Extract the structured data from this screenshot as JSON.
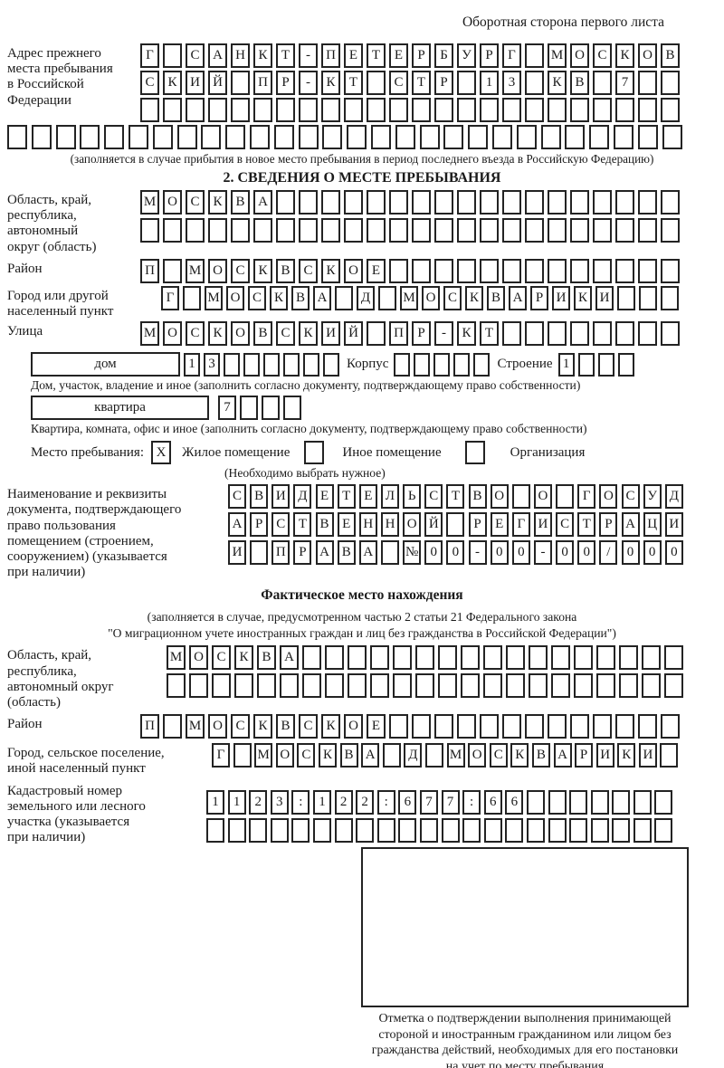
{
  "colors": {
    "ink": "#1b1b1b",
    "cell_border": "#232323",
    "background": "#ffffff"
  },
  "header": {
    "note": "Оборотная сторона первого листа"
  },
  "prev_address": {
    "label": "Адрес прежнего\nместа пребывания\nв Российской\nФедерации",
    "row1": {
      "text": "Г САНКТ-ПЕТЕРБУРГ МОСКОВ",
      "boxes": 24
    },
    "row2": {
      "text": "СКИЙ ПР-КТ СТР 13 КВ 7",
      "boxes": 24
    },
    "row3": {
      "text": "",
      "boxes": 24
    },
    "row4": {
      "text": "",
      "boxes": 28
    },
    "footnote": "(заполняется в случае прибытия в новое место пребывания в период последнего въезда в Российскую Федерацию)"
  },
  "section2": {
    "title": "2. СВЕДЕНИЯ О МЕСТЕ ПРЕБЫВАНИЯ",
    "region": {
      "label": "Область, край,\nреспублика,\nавтономный\nокруг (область)",
      "row1": {
        "text": "МОСКВА",
        "boxes": 24
      },
      "row2": {
        "text": "",
        "boxes": 24
      }
    },
    "district": {
      "label": "Район",
      "row": {
        "text": "П МОСКВСКОЕ",
        "boxes": 24
      }
    },
    "city": {
      "label": "Город или другой\nнаселенный пункт",
      "row": {
        "text": "Г МОСКВА Д МОСКВАРИКИ",
        "boxes": 24
      }
    },
    "street": {
      "label": "Улица",
      "row": {
        "text": "МОСКОВСКИЙ ПР-КТ",
        "boxes": 24
      }
    },
    "house": {
      "box_label": "дом",
      "row": {
        "text": "13",
        "boxes": 8
      },
      "korpus_label": "Корпус",
      "korpus_row": {
        "text": "",
        "boxes": 5
      },
      "stroenie_label": "Строение",
      "stroenie_row": {
        "text": "1",
        "boxes": 4
      },
      "footnote": "Дом, участок, владение и иное (заполнить согласно документу, подтверждающему право собственности)"
    },
    "apartment": {
      "box_label": "квартира",
      "row": {
        "text": "7",
        "boxes": 4
      },
      "footnote": "Квартира, комната, офис и иное (заполнить согласно документу, подтверждающему право собственности)"
    },
    "stay_type": {
      "label": "Место пребывания:",
      "options": [
        {
          "label": "Жилое помещение",
          "mark": "X"
        },
        {
          "label": "Иное помещение",
          "mark": ""
        },
        {
          "label": "Организация",
          "mark": ""
        }
      ],
      "hint": "(Необходимо выбрать нужное)"
    },
    "document": {
      "label": "Наименование и реквизиты\nдокумента, подтверждающего\nправо пользования\nпомещением (строением,\nсооружением) (указывается\nпри наличии)",
      "row1": {
        "text": "СВИДЕТЕЛЬСТВО О ГОСУД",
        "boxes": 21
      },
      "row2": {
        "text": "АРСТВЕННОЙ РЕГИСТРАЦИ",
        "boxes": 21
      },
      "row3": {
        "text": "И ПРАВА №00-00-00/000",
        "boxes": 21
      }
    }
  },
  "actual_location": {
    "title": "Фактическое место нахождения",
    "note": "(заполняется в случае, предусмотренном частью 2 статьи 21 Федерального закона\n\"О миграционном учете иностранных граждан и лиц без гражданства в Российской Федерации\")",
    "region": {
      "label": "Область, край,\nреспублика,\nавтономный округ\n(область)",
      "row1": {
        "text": "МОСКВА",
        "boxes": 23
      },
      "row2": {
        "text": "",
        "boxes": 23
      }
    },
    "district": {
      "label": "Район",
      "row": {
        "text": "П МОСКВСКОЕ",
        "boxes": 24
      }
    },
    "city": {
      "label": "Город, сельское поселение,\nиной населенный пункт",
      "row": {
        "text": "Г МОСКВА Д МОСКВАРИКИ",
        "boxes": 22
      }
    },
    "cadastral": {
      "label": "Кадастровый номер\nземельного или лесного\nучастка (указывается\nпри наличии)",
      "row1": {
        "text": "1123:122:677:66",
        "boxes": 22
      },
      "row2": {
        "text": "",
        "boxes": 22
      }
    }
  },
  "confirmation": {
    "caption": "Отметка о подтверждении выполнения принимающей\nстороной и иностранным гражданином или лицом без\nгражданства действий, необходимых для его постановки\nна учет по месту пребывания"
  }
}
